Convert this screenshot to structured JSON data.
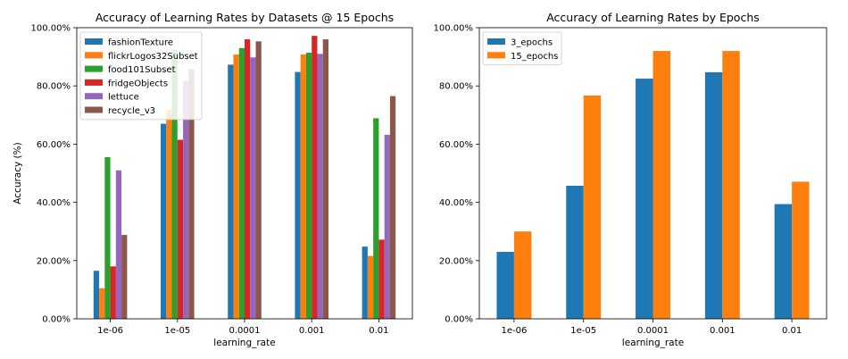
{
  "chart_data": [
    {
      "type": "bar",
      "title": "Accuracy of Learning Rates by Datasets @ 15 Epochs",
      "xlabel": "learning_rate",
      "ylabel": "Accuracy (%)",
      "categories": [
        "1e-06",
        "1e-05",
        "0.0001",
        "0.001",
        "0.01"
      ],
      "ylim": [
        0,
        100
      ],
      "yticks": [
        "0.00%",
        "20.00%",
        "40.00%",
        "60.00%",
        "80.00%",
        "100.00%"
      ],
      "legend_position": "top-left",
      "grid": false,
      "series": [
        {
          "name": "fashionTexture",
          "color": "#1f77b4",
          "values": [
            16.5,
            67.0,
            87.3,
            84.8,
            24.8
          ]
        },
        {
          "name": "flickrLogos32Subset",
          "color": "#ff7f0e",
          "values": [
            10.5,
            71.8,
            90.8,
            90.8,
            21.6
          ]
        },
        {
          "name": "food101Subset",
          "color": "#2ca02c",
          "values": [
            55.5,
            92.5,
            93.0,
            91.4,
            68.9
          ]
        },
        {
          "name": "fridgeObjects",
          "color": "#d62728",
          "values": [
            18.0,
            61.5,
            96.0,
            97.2,
            27.2
          ]
        },
        {
          "name": "lettuce",
          "color": "#9467bd",
          "values": [
            51.0,
            81.8,
            89.8,
            91.0,
            63.2
          ]
        },
        {
          "name": "recycle_v3",
          "color": "#8c564b",
          "values": [
            28.8,
            85.8,
            95.3,
            96.0,
            76.5
          ]
        }
      ]
    },
    {
      "type": "bar",
      "title": "Accuracy of Learning Rates by Epochs",
      "xlabel": "learning_rate",
      "ylabel": "",
      "categories": [
        "1e-06",
        "1e-05",
        "0.0001",
        "0.001",
        "0.01"
      ],
      "ylim": [
        0,
        100
      ],
      "yticks": [
        "0.00%",
        "20.00%",
        "40.00%",
        "60.00%",
        "80.00%",
        "100.00%"
      ],
      "legend_position": "top-left",
      "grid": false,
      "series": [
        {
          "name": "3_epochs",
          "color": "#1f77b4",
          "values": [
            23.0,
            45.7,
            82.5,
            84.7,
            39.4
          ]
        },
        {
          "name": "15_epochs",
          "color": "#ff7f0e",
          "values": [
            30.0,
            76.7,
            92.0,
            92.0,
            47.1
          ]
        }
      ]
    }
  ]
}
